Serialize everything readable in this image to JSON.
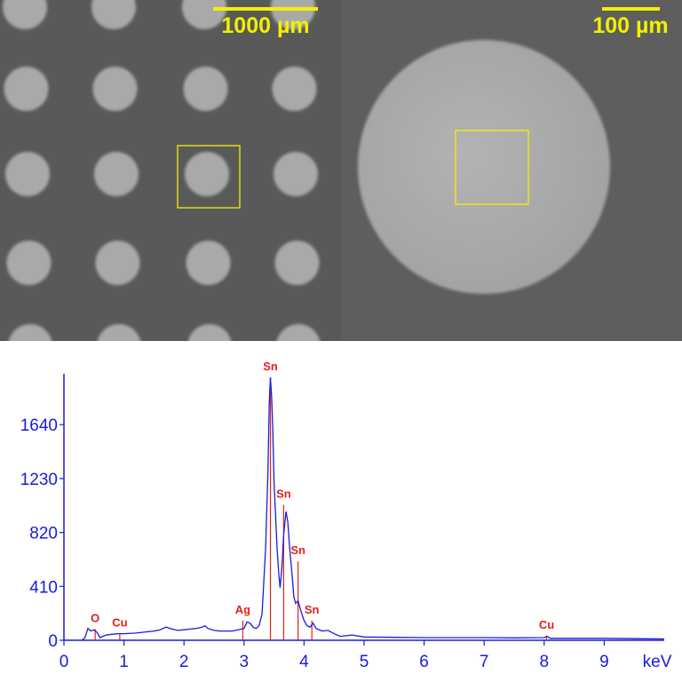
{
  "sem_images": {
    "left_scale_bar": "1000 µm",
    "right_scale_bar": "100 µm",
    "highlight_color": "#f4f000"
  },
  "chart_data": {
    "type": "line",
    "title": "",
    "xlabel": "keV",
    "ylabel": "",
    "xlim": [
      0,
      10
    ],
    "ylim": [
      0,
      2000
    ],
    "x_ticks": [
      "0",
      "1",
      "2",
      "3",
      "4",
      "5",
      "6",
      "7",
      "8",
      "9"
    ],
    "y_ticks": [
      "0",
      "410",
      "820",
      "1230",
      "1640"
    ],
    "grid": false,
    "line_color": "#1a1ae0",
    "marker_color": "#e0201a",
    "series": [
      {
        "x": [
          0.3,
          0.35,
          0.4,
          0.45,
          0.5,
          0.55,
          0.6,
          0.7,
          0.8,
          0.9,
          1.0,
          1.2,
          1.4,
          1.5,
          1.6,
          1.7,
          1.8,
          1.9,
          2.0,
          2.1,
          2.2,
          2.3,
          2.35,
          2.4,
          2.5,
          2.6,
          2.8,
          2.9,
          3.0,
          3.05,
          3.1,
          3.15,
          3.2,
          3.25,
          3.3,
          3.33,
          3.36,
          3.4,
          3.42,
          3.44,
          3.46,
          3.48,
          3.5,
          3.52,
          3.55,
          3.58,
          3.6,
          3.63,
          3.66,
          3.7,
          3.73,
          3.76,
          3.8,
          3.83,
          3.86,
          3.9,
          3.95,
          4.0,
          4.05,
          4.1,
          4.15,
          4.2,
          4.3,
          4.4,
          4.5,
          4.6,
          4.8,
          5.0,
          5.5,
          6.0,
          6.5,
          7.0,
          7.5,
          8.0,
          8.05,
          8.1,
          8.5,
          9.0,
          9.5,
          10.0
        ],
        "y": [
          0,
          20,
          90,
          70,
          80,
          60,
          20,
          40,
          45,
          50,
          50,
          55,
          65,
          70,
          80,
          100,
          85,
          75,
          80,
          85,
          90,
          100,
          110,
          90,
          75,
          70,
          70,
          80,
          90,
          140,
          130,
          100,
          90,
          110,
          200,
          450,
          700,
          1300,
          1800,
          2000,
          1850,
          1600,
          1200,
          1000,
          700,
          500,
          400,
          550,
          800,
          980,
          900,
          700,
          500,
          330,
          280,
          300,
          220,
          150,
          110,
          100,
          130,
          90,
          70,
          75,
          50,
          30,
          40,
          25,
          22,
          20,
          20,
          20,
          18,
          20,
          30,
          15,
          15,
          15,
          12,
          10
        ]
      }
    ],
    "element_markers": [
      {
        "label": "O",
        "energy": 0.52,
        "height": 85
      },
      {
        "label": "Cu",
        "energy": 0.93,
        "height": 50
      },
      {
        "label": "Ag",
        "energy": 2.98,
        "height": 150
      },
      {
        "label": "Sn",
        "energy": 3.44,
        "height": 2000
      },
      {
        "label": "Sn",
        "energy": 3.66,
        "height": 1030
      },
      {
        "label": "Sn",
        "energy": 3.9,
        "height": 600
      },
      {
        "label": "Sn",
        "energy": 4.13,
        "height": 150
      },
      {
        "label": "Cu",
        "energy": 8.04,
        "height": 35
      }
    ]
  }
}
